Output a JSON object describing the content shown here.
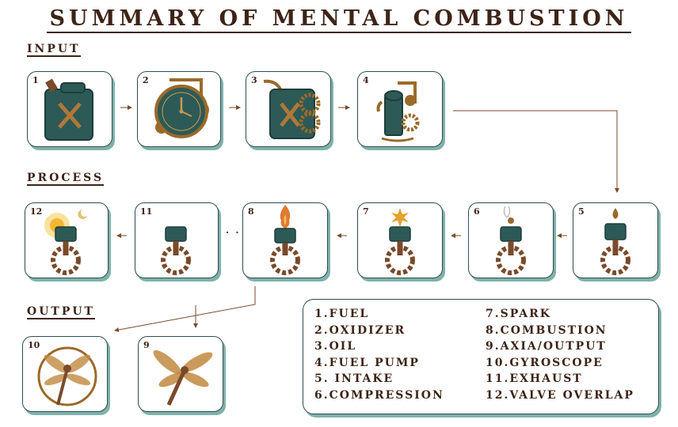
{
  "title": "SUMMARY OF MENTAL COMBUSTION",
  "sections": {
    "input": "INPUT",
    "process": "PROCESS",
    "output": "OUTPUT"
  },
  "cards": [
    {
      "num": "1",
      "icon": "jerry-can-icon"
    },
    {
      "num": "2",
      "icon": "steampunk-clock-icon"
    },
    {
      "num": "3",
      "icon": "jerry-can-gears-icon"
    },
    {
      "num": "4",
      "icon": "oil-pump-icon"
    },
    {
      "num": "5",
      "icon": "piston-drop-icon"
    },
    {
      "num": "6",
      "icon": "piston-steam-icon"
    },
    {
      "num": "7",
      "icon": "piston-spark-icon"
    },
    {
      "num": "8",
      "icon": "piston-flame-icon"
    },
    {
      "num": "11",
      "icon": "piston-moon-icon"
    },
    {
      "num": "12",
      "icon": "piston-sun-icon"
    },
    {
      "num": "10",
      "icon": "dragonfly-gyroscope-icon"
    },
    {
      "num": "9",
      "icon": "dragonfly-icon"
    }
  ],
  "dots": "· ·",
  "legend": {
    "left": [
      "1.FUEL",
      "2.OXIDIZER",
      "3.OIL",
      "4.FUEL PUMP",
      "5. INTAKE",
      "6.COMPRESSION"
    ],
    "right": [
      "7.SPARK",
      "8.COMBUSTION",
      "9.AXIA/OUTPUT",
      "10.GYROSCOPE",
      "11.EXHAUST",
      "12.VALVE OVERLAP"
    ]
  },
  "colors": {
    "teal": "#2d5a56",
    "brass": "#9a6a2a",
    "rust": "#7a4a2a",
    "ink": "#3d2417",
    "shadow": "#7fb1ab"
  }
}
